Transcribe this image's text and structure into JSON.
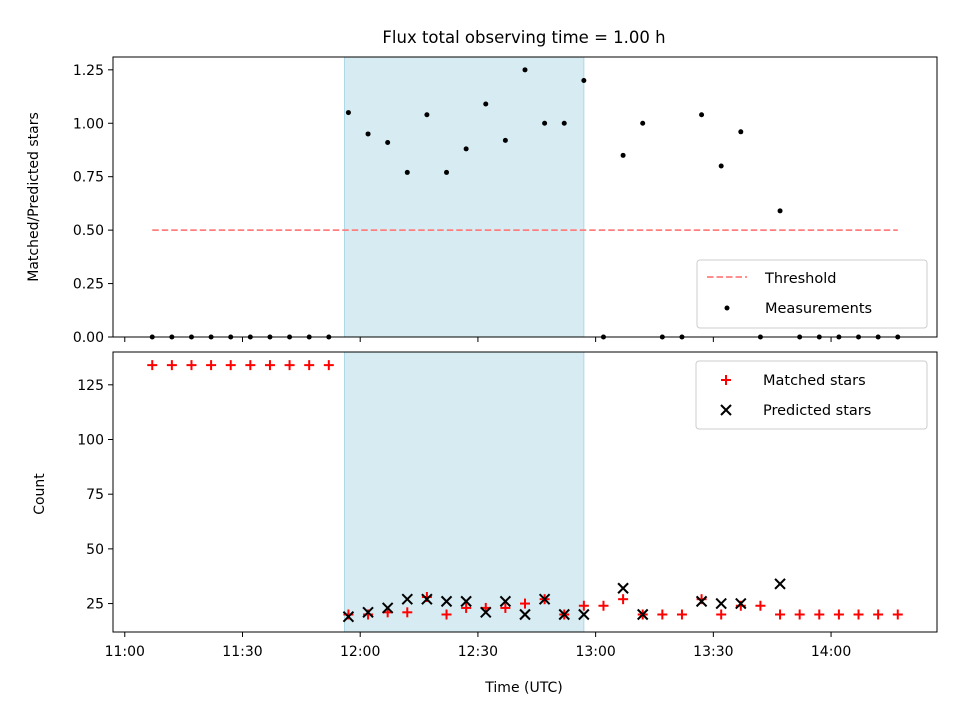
{
  "chart_data": {
    "type": "scatter",
    "title": "Flux total observing time = 1.00 h",
    "xlabel": "Time (UTC)",
    "x_ticks": [
      "11:00",
      "11:30",
      "12:00",
      "12:30",
      "13:00",
      "13:30",
      "14:00"
    ],
    "x_range": [
      "10:57",
      "14:27"
    ],
    "shaded_interval": [
      "11:56",
      "12:57"
    ],
    "shade_color": "#add8e6",
    "times": [
      "11:07",
      "11:12",
      "11:17",
      "11:22",
      "11:27",
      "11:32",
      "11:37",
      "11:42",
      "11:47",
      "11:52",
      "11:57",
      "12:02",
      "12:07",
      "12:12",
      "12:17",
      "12:22",
      "12:27",
      "12:32",
      "12:37",
      "12:42",
      "12:47",
      "12:52",
      "12:57",
      "13:02",
      "13:07",
      "13:12",
      "13:17",
      "13:22",
      "13:27",
      "13:32",
      "13:37",
      "13:42",
      "13:47",
      "13:52",
      "13:57",
      "14:02",
      "14:07",
      "14:12",
      "14:17"
    ],
    "top": {
      "ylabel": "Matched/Predicted stars",
      "ylim": [
        0,
        1.31
      ],
      "y_ticks": [
        "0.00",
        "0.25",
        "0.50",
        "0.75",
        "1.00",
        "1.25"
      ],
      "threshold": {
        "name": "Threshold",
        "value": 0.5,
        "x_range": [
          "11:07",
          "14:17"
        ],
        "color": "#ff7f7f"
      },
      "measurements": {
        "name": "Measurements",
        "color": "#000000",
        "values": [
          0,
          0,
          0,
          0,
          0,
          0,
          0,
          0,
          0,
          0,
          1.05,
          0.95,
          0.91,
          0.77,
          1.04,
          0.77,
          0.88,
          1.09,
          0.92,
          1.25,
          1.0,
          1.0,
          1.2,
          0,
          0.85,
          1.0,
          0,
          0,
          1.04,
          0.8,
          0.96,
          0,
          0.59,
          0,
          0,
          0,
          0,
          0,
          0
        ]
      },
      "legend_position": "lower-right"
    },
    "bottom": {
      "ylabel": "Count",
      "ylim": [
        12,
        140
      ],
      "y_ticks": [
        "25",
        "50",
        "75",
        "100",
        "125"
      ],
      "series": [
        {
          "name": "Matched stars",
          "marker": "plus",
          "color": "#ff0000",
          "values": [
            134,
            134,
            134,
            134,
            134,
            134,
            134,
            134,
            134,
            134,
            20,
            20,
            21,
            21,
            28,
            20,
            23,
            23,
            23,
            25,
            27,
            20,
            24,
            24,
            27,
            20,
            20,
            20,
            27,
            20,
            24,
            24,
            20,
            20,
            20,
            20,
            20,
            20,
            20
          ]
        },
        {
          "name": "Predicted stars",
          "marker": "x",
          "color": "#000000",
          "values": [
            null,
            null,
            null,
            null,
            null,
            null,
            null,
            null,
            null,
            null,
            19,
            21,
            23,
            27,
            27,
            26,
            26,
            21,
            26,
            20,
            27,
            20,
            20,
            null,
            32,
            20,
            null,
            null,
            26,
            25,
            25,
            null,
            34,
            null,
            null,
            null,
            null,
            null,
            null
          ]
        }
      ],
      "legend_position": "upper-right"
    }
  }
}
